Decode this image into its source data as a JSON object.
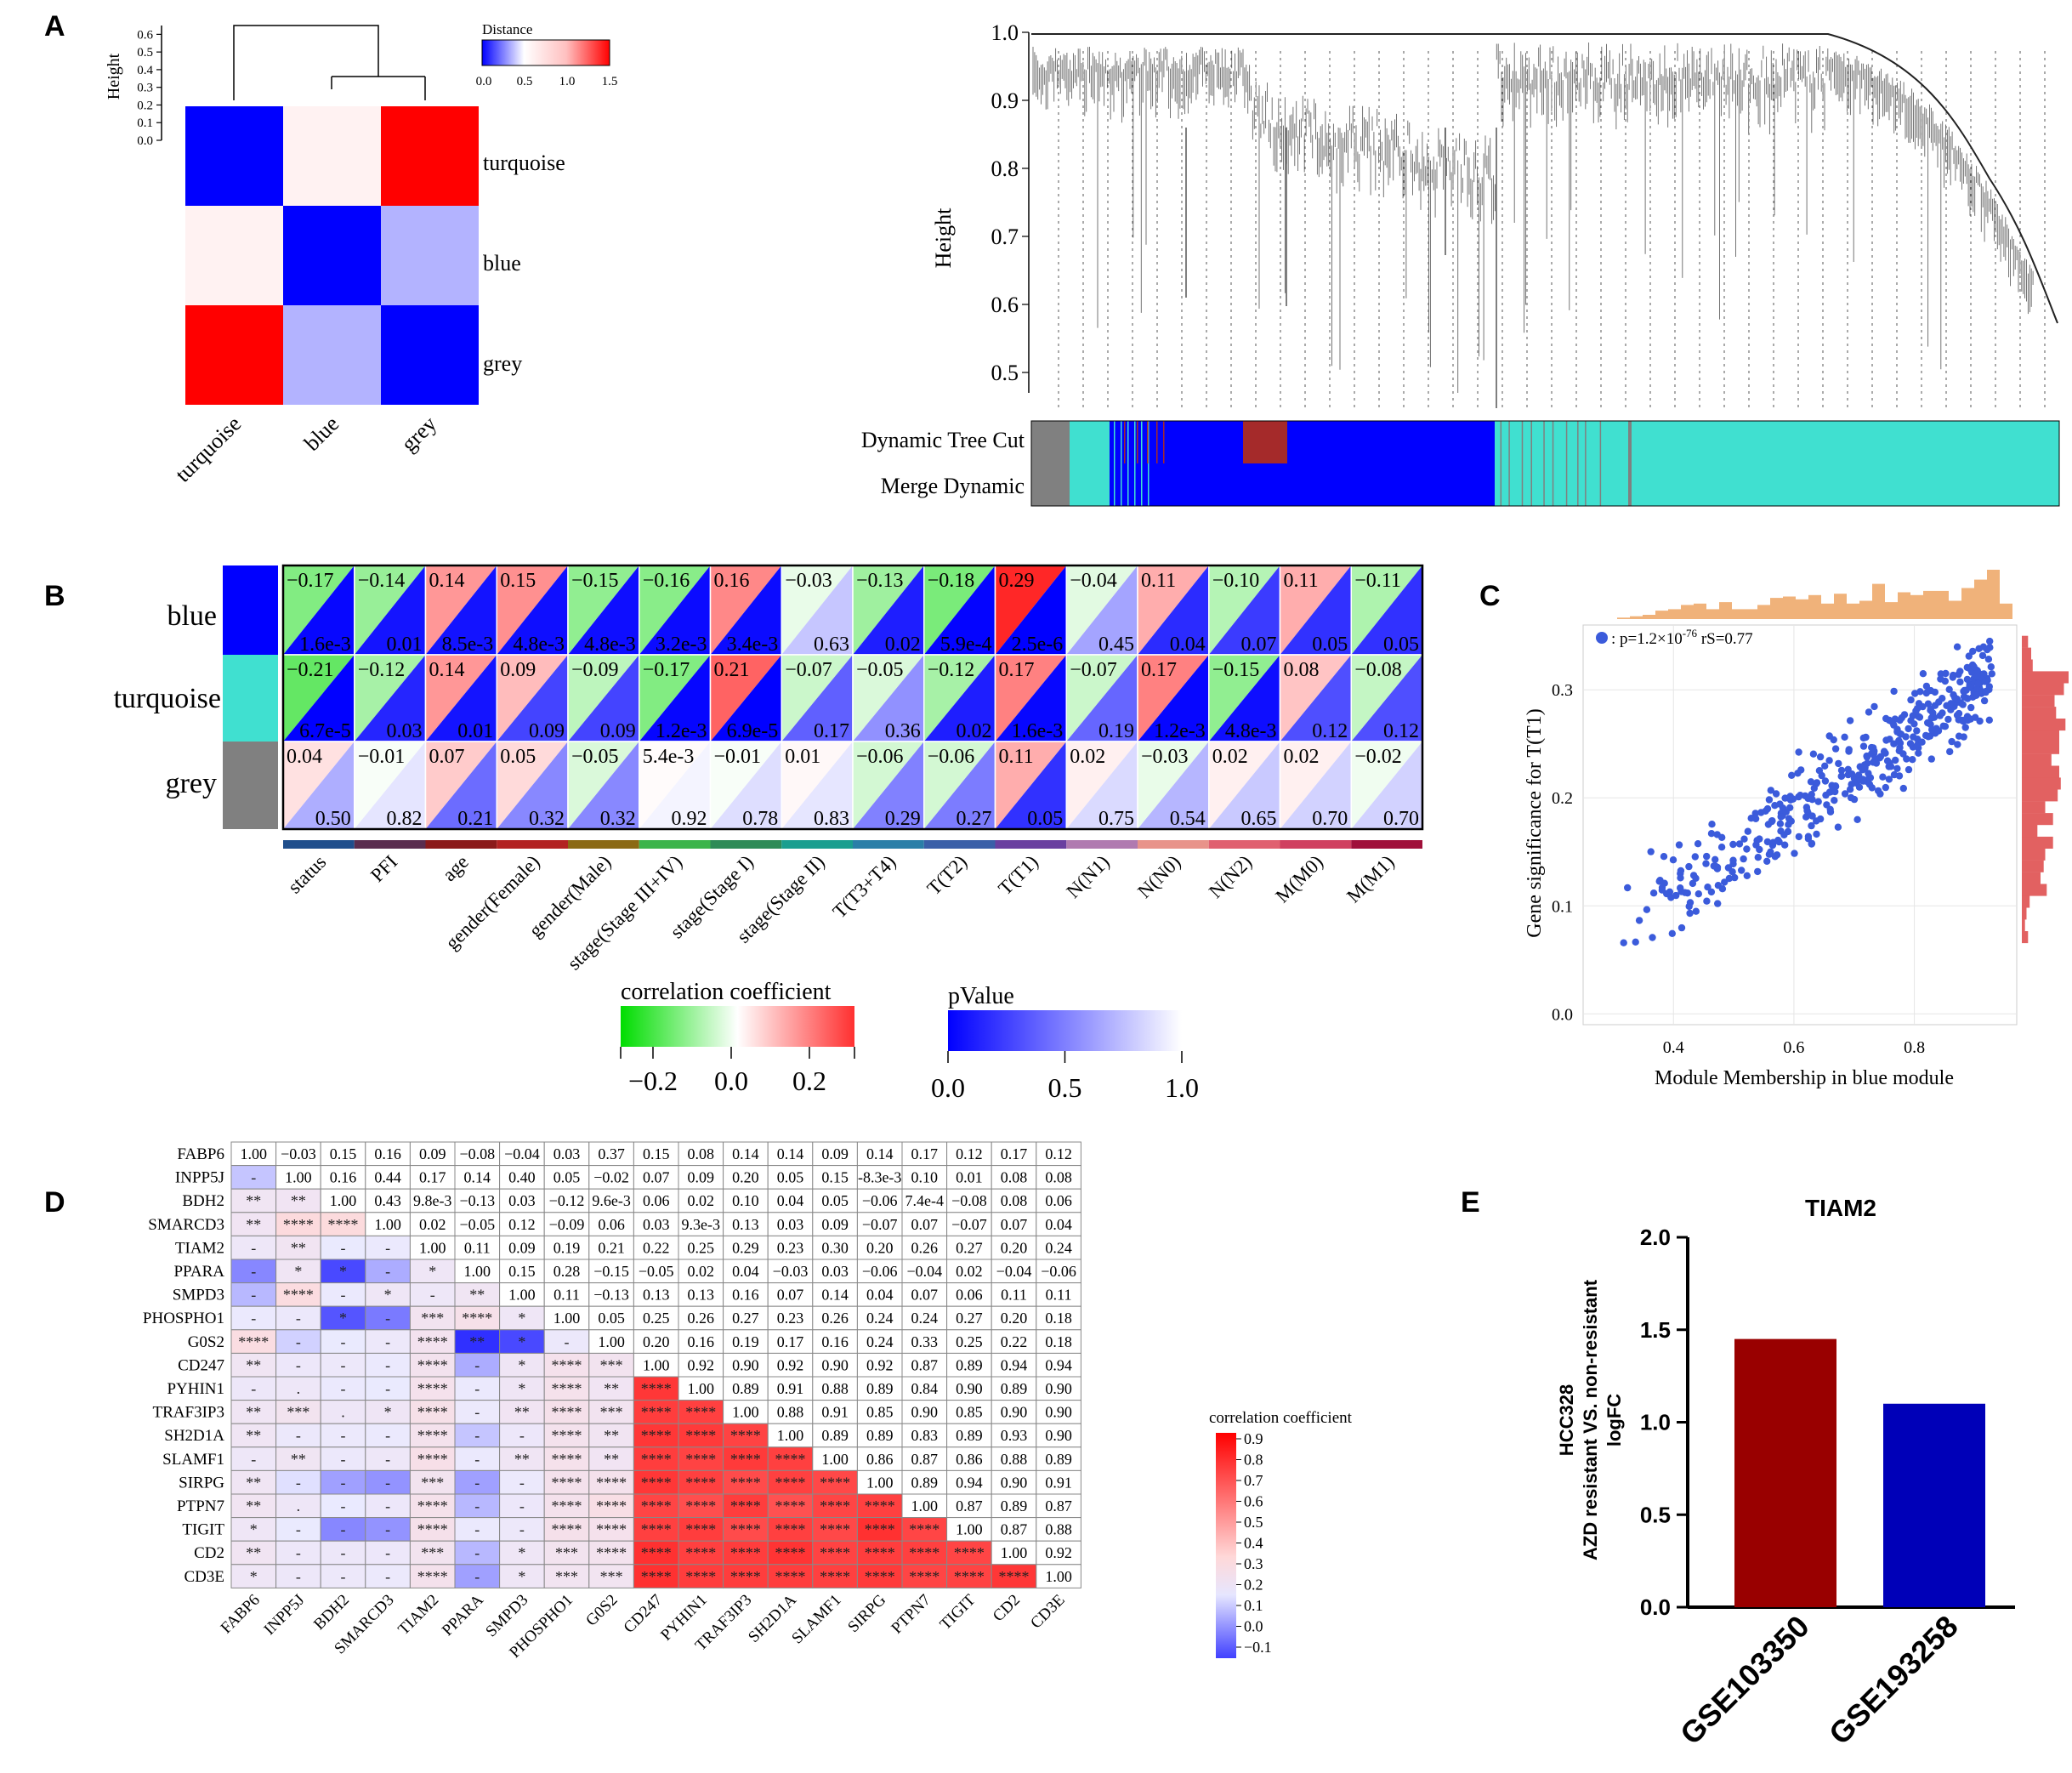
{
  "panel_labels": {
    "a": "A",
    "b": "B",
    "c": "C",
    "d": "D",
    "e": "E"
  },
  "colors": {
    "blue": "#0000ff",
    "red": "#ff0000",
    "turquoise": "#40e0d0",
    "grey": "#808080",
    "green": "#00e000",
    "brown": "#a52a2a",
    "scatter": "#3b5bdb",
    "orange_hist": "#f0b27a",
    "red_hist": "#e26161",
    "bar_dark_red": "#990000",
    "bar_dark_blue": "#0000b8"
  },
  "panel_a_left": {
    "ylabel": "Height",
    "yticks": [
      "0.0",
      "0.1",
      "0.2",
      "0.3",
      "0.4",
      "0.5",
      "0.6"
    ],
    "legend_title": "Distance",
    "legend_ticks": [
      "0.0",
      "0.5",
      "1.0",
      "1.5"
    ],
    "modules": [
      "turquoise",
      "blue",
      "grey"
    ],
    "matrix": [
      [
        0.0,
        0.6,
        1.5
      ],
      [
        0.6,
        0.0,
        0.35
      ],
      [
        1.5,
        0.35,
        0.0
      ]
    ]
  },
  "panel_a_right": {
    "ylabel": "Height",
    "yticks": [
      "0.5",
      "0.6",
      "0.7",
      "0.8",
      "0.9",
      "1.0"
    ],
    "row_labels": [
      "Dynamic Tree Cut",
      "Merge Dynamic"
    ]
  },
  "panel_b": {
    "modules": [
      "blue",
      "turquoise",
      "grey"
    ],
    "traits": [
      "status",
      "PFI",
      "age",
      "gender(Female)",
      "gender(Male)",
      "stage(Stage III+IV)",
      "stage(Stage I)",
      "stage(Stage II)",
      "T(T3+T4)",
      "T(T2)",
      "T(T1)",
      "N(N1)",
      "N(N0)",
      "N(N2)",
      "M(M0)",
      "M(M1)"
    ],
    "trait_colors": [
      "#1f4e8c",
      "#5a2d4f",
      "#8b1a1a",
      "#b22222",
      "#8b6914",
      "#3cb44b",
      "#2e8b57",
      "#1a9e8f",
      "#2a7fa8",
      "#3a5fa8",
      "#6a3fa0",
      "#b07ab0",
      "#e8938a",
      "#e06070",
      "#d04060",
      "#a0103a"
    ],
    "cor": [
      [
        -0.17,
        -0.14,
        0.14,
        0.15,
        -0.15,
        -0.16,
        0.16,
        -0.03,
        -0.13,
        -0.18,
        0.29,
        -0.04,
        0.11,
        -0.1,
        0.11,
        -0.11
      ],
      [
        -0.21,
        -0.12,
        0.14,
        0.09,
        -0.09,
        -0.17,
        0.21,
        -0.07,
        -0.05,
        -0.12,
        0.17,
        -0.07,
        0.17,
        -0.15,
        0.08,
        -0.08
      ],
      [
        0.04,
        -0.01,
        0.07,
        0.05,
        -0.05,
        0.0054,
        -0.01,
        0.01,
        -0.06,
        -0.06,
        0.11,
        0.02,
        -0.03,
        0.02,
        0.02,
        -0.02
      ]
    ],
    "cor_text": [
      [
        "−0.17",
        "−0.14",
        "0.14",
        "0.15",
        "−0.15",
        "−0.16",
        "0.16",
        "−0.03",
        "−0.13",
        "−0.18",
        "0.29",
        "−0.04",
        "0.11",
        "−0.10",
        "0.11",
        "−0.11"
      ],
      [
        "−0.21",
        "−0.12",
        "0.14",
        "0.09",
        "−0.09",
        "−0.17",
        "0.21",
        "−0.07",
        "−0.05",
        "−0.12",
        "0.17",
        "−0.07",
        "0.17",
        "−0.15",
        "0.08",
        "−0.08"
      ],
      [
        "0.04",
        "−0.01",
        "0.07",
        "0.05",
        "−0.05",
        "5.4e-3",
        "−0.01",
        "0.01",
        "−0.06",
        "−0.06",
        "0.11",
        "0.02",
        "−0.03",
        "0.02",
        "0.02",
        "−0.02"
      ]
    ],
    "p": [
      [
        0.0016,
        0.01,
        0.0085,
        0.0048,
        0.0048,
        0.0032,
        0.0034,
        0.63,
        0.02,
        0.00059,
        2.5e-06,
        0.45,
        0.04,
        0.07,
        0.05,
        0.05
      ],
      [
        6.7e-05,
        0.03,
        0.01,
        0.09,
        0.09,
        0.0012,
        6.9e-05,
        0.17,
        0.36,
        0.02,
        0.0016,
        0.19,
        0.0012,
        0.0048,
        0.12,
        0.12
      ],
      [
        0.5,
        0.82,
        0.21,
        0.32,
        0.32,
        0.92,
        0.78,
        0.83,
        0.29,
        0.27,
        0.05,
        0.75,
        0.54,
        0.65,
        0.7,
        0.7
      ]
    ],
    "p_text": [
      [
        "1.6e-3",
        "0.01",
        "8.5e-3",
        "4.8e-3",
        "4.8e-3",
        "3.2e-3",
        "3.4e-3",
        "0.63",
        "0.02",
        "5.9e-4",
        "2.5e-6",
        "0.45",
        "0.04",
        "0.07",
        "0.05",
        "0.05"
      ],
      [
        "6.7e-5",
        "0.03",
        "0.01",
        "0.09",
        "0.09",
        "1.2e-3",
        "6.9e-5",
        "0.17",
        "0.36",
        "0.02",
        "1.6e-3",
        "0.19",
        "1.2e-3",
        "4.8e-3",
        "0.12",
        "0.12"
      ],
      [
        "0.50",
        "0.82",
        "0.21",
        "0.32",
        "0.32",
        "0.92",
        "0.78",
        "0.83",
        "0.29",
        "0.27",
        "0.05",
        "0.75",
        "0.54",
        "0.65",
        "0.70",
        "0.70"
      ]
    ],
    "legend_cor_title": "correlation coefficient",
    "legend_cor_ticks": [
      "−0.2",
      "0.0",
      "0.2"
    ],
    "legend_p_title": "pValue",
    "legend_p_ticks": [
      "0.0",
      "0.5",
      "1.0"
    ]
  },
  "chart_data": [
    {
      "type": "scatter",
      "panel": "C",
      "xlabel": "Module Membership in blue module",
      "ylabel": "Gene significance for T(T1)",
      "xlim": [
        0.25,
        0.97
      ],
      "ylim": [
        -0.01,
        0.36
      ],
      "xticks": [
        "0.4",
        "0.6",
        "0.8"
      ],
      "yticks": [
        "0.0",
        "0.1",
        "0.2",
        "0.3"
      ],
      "legend": {
        "prefix": ": p=1.2×10",
        "exponent": "-76",
        "suffix": " rS=0.77"
      },
      "n_points": 420,
      "trend": {
        "slope": 0.38,
        "intercept": -0.06,
        "noise": 0.045
      }
    },
    {
      "type": "bar",
      "panel": "E",
      "title": "TIAM2",
      "categories": [
        "GSE103350",
        "GSE193258"
      ],
      "values": [
        1.45,
        1.1
      ],
      "ylabel_lines": [
        "HCC328",
        "AZD resistant VS. non-resistant",
        "logFC"
      ],
      "ylim": [
        0,
        2.0
      ],
      "yticks": [
        "0.0",
        "0.5",
        "1.0",
        "1.5",
        "2.0"
      ]
    }
  ],
  "panel_d": {
    "genes": [
      "FABP6",
      "INPP5J",
      "BDH2",
      "SMARCD3",
      "TIAM2",
      "PPARA",
      "SMPD3",
      "PHOSPHO1",
      "G0S2",
      "CD247",
      "PYHIN1",
      "TRAF3IP3",
      "SH2D1A",
      "SLAMF1",
      "SIRPG",
      "PTPN7",
      "TIGIT",
      "CD2",
      "CD3E"
    ],
    "upper": [
      [
        "1.00",
        "−0.03",
        "0.15",
        "0.16",
        "0.09",
        "−0.08",
        "−0.04",
        "0.03",
        "0.37",
        "0.15",
        "0.08",
        "0.14",
        "0.14",
        "0.09",
        "0.14",
        "0.17",
        "0.12",
        "0.17",
        "0.12"
      ],
      [
        "1.00",
        "0.16",
        "0.44",
        "0.17",
        "0.14",
        "0.40",
        "0.05",
        "−0.02",
        "0.07",
        "0.09",
        "0.20",
        "0.05",
        "0.15",
        "-8.3e-3",
        "0.10",
        "0.01",
        "0.08",
        "0.08"
      ],
      [
        "1.00",
        "0.43",
        "9.8e-3",
        "−0.13",
        "0.03",
        "−0.12",
        "9.6e-3",
        "0.06",
        "0.02",
        "0.10",
        "0.04",
        "0.05",
        "−0.06",
        "7.4e-4",
        "−0.08",
        "0.08",
        "0.06"
      ],
      [
        "1.00",
        "0.02",
        "−0.05",
        "0.12",
        "−0.09",
        "0.06",
        "0.03",
        "9.3e-3",
        "0.13",
        "0.03",
        "0.09",
        "−0.07",
        "0.07",
        "−0.07",
        "0.07",
        "0.04"
      ],
      [
        "1.00",
        "0.11",
        "0.09",
        "0.19",
        "0.21",
        "0.22",
        "0.25",
        "0.29",
        "0.23",
        "0.30",
        "0.20",
        "0.26",
        "0.27",
        "0.20",
        "0.24"
      ],
      [
        "1.00",
        "0.15",
        "0.28",
        "−0.15",
        "−0.05",
        "0.02",
        "0.04",
        "−0.03",
        "0.03",
        "−0.06",
        "−0.04",
        "0.02",
        "−0.04",
        "−0.06"
      ],
      [
        "1.00",
        "0.11",
        "−0.13",
        "0.13",
        "0.13",
        "0.16",
        "0.07",
        "0.14",
        "0.04",
        "0.07",
        "0.06",
        "0.11",
        "0.11"
      ],
      [
        "1.00",
        "0.05",
        "0.25",
        "0.26",
        "0.27",
        "0.23",
        "0.26",
        "0.24",
        "0.24",
        "0.27",
        "0.20",
        "0.18"
      ],
      [
        "1.00",
        "0.20",
        "0.16",
        "0.19",
        "0.17",
        "0.16",
        "0.24",
        "0.33",
        "0.25",
        "0.22",
        "0.18"
      ],
      [
        "1.00",
        "0.92",
        "0.90",
        "0.92",
        "0.90",
        "0.92",
        "0.87",
        "0.89",
        "0.94",
        "0.94"
      ],
      [
        "1.00",
        "0.89",
        "0.91",
        "0.88",
        "0.89",
        "0.84",
        "0.90",
        "0.89",
        "0.90"
      ],
      [
        "1.00",
        "0.88",
        "0.91",
        "0.85",
        "0.90",
        "0.85",
        "0.90",
        "0.90"
      ],
      [
        "1.00",
        "0.89",
        "0.89",
        "0.83",
        "0.89",
        "0.93",
        "0.90"
      ],
      [
        "1.00",
        "0.86",
        "0.87",
        "0.86",
        "0.88",
        "0.89"
      ],
      [
        "1.00",
        "0.89",
        "0.94",
        "0.90",
        "0.91"
      ],
      [
        "1.00",
        "0.87",
        "0.89",
        "0.87"
      ],
      [
        "1.00",
        "0.87",
        "0.88"
      ],
      [
        "1.00",
        "0.92"
      ],
      [
        "1.00"
      ]
    ],
    "lower_sig": [
      [],
      [
        "-"
      ],
      [
        "**",
        "**"
      ],
      [
        "**",
        "****",
        "****"
      ],
      [
        "-",
        "**",
        "-",
        "-"
      ],
      [
        "-",
        "*",
        "*",
        "-",
        "*"
      ],
      [
        "-",
        "****",
        "-",
        "*",
        "-",
        "**"
      ],
      [
        "-",
        "-",
        "*",
        "-",
        "***",
        "****",
        "*"
      ],
      [
        "****",
        "-",
        "-",
        "-",
        "****",
        "**",
        "*",
        "-"
      ],
      [
        "**",
        "-",
        "-",
        "-",
        "****",
        "-",
        "*",
        "****",
        "***"
      ],
      [
        "-",
        ".",
        "-",
        "-",
        "****",
        "-",
        "*",
        "****",
        "**",
        "****"
      ],
      [
        "**",
        "***",
        ".",
        "*",
        "****",
        "-",
        "**",
        "****",
        "***",
        "****",
        "****"
      ],
      [
        "**",
        "-",
        "-",
        "-",
        "****",
        "-",
        "-",
        "****",
        "**",
        "****",
        "****",
        "****"
      ],
      [
        "-",
        "**",
        "-",
        "-",
        "****",
        "-",
        "**",
        "****",
        "**",
        "****",
        "****",
        "****",
        "****"
      ],
      [
        "**",
        "-",
        "-",
        "-",
        "***",
        "-",
        "-",
        "****",
        "****",
        "****",
        "****",
        "****",
        "****",
        "****"
      ],
      [
        "**",
        ".",
        "-",
        "-",
        "****",
        "-",
        "-",
        "****",
        "****",
        "****",
        "****",
        "****",
        "****",
        "****",
        "****"
      ],
      [
        "*",
        "-",
        "-",
        "-",
        "****",
        "-",
        "-",
        "****",
        "****",
        "****",
        "****",
        "****",
        "****",
        "****",
        "****",
        "****"
      ],
      [
        "**",
        "-",
        "-",
        "-",
        "***",
        "-",
        "*",
        "***",
        "****",
        "****",
        "****",
        "****",
        "****",
        "****",
        "****",
        "****",
        "****"
      ],
      [
        "*",
        "-",
        "-",
        "-",
        "****",
        "-",
        "*",
        "***",
        "***",
        "****",
        "****",
        "****",
        "****",
        "****",
        "****",
        "****",
        "****",
        "****"
      ]
    ],
    "legend_title": "correlation coefficient",
    "legend_ticks": [
      "0.9",
      "0.8",
      "0.7",
      "0.6",
      "0.5",
      "0.4",
      "0.3",
      "0.2",
      "0.1",
      "0.0",
      "−0.1"
    ]
  }
}
